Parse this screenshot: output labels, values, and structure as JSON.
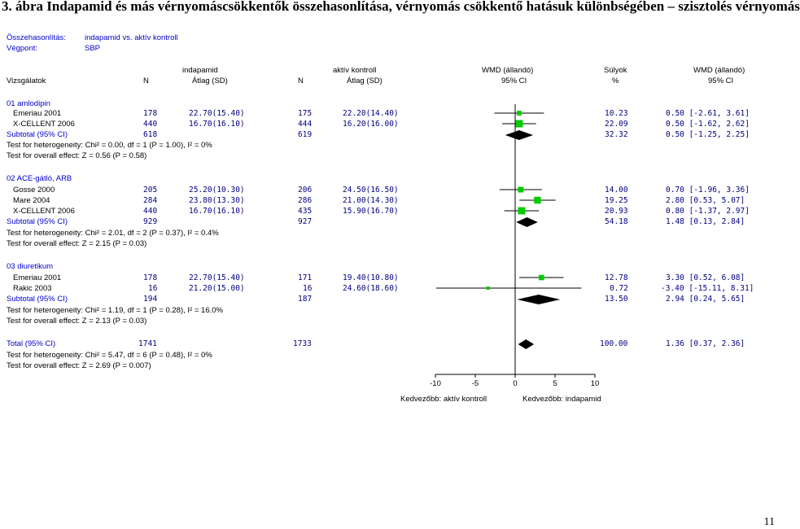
{
  "page_title": "3. ábra Indapamid és más vérnyomáscsökkentők összehasonlítása, vérnyomás csökkentő hatásuk különbségében – szisztolés vérnyomás",
  "page_number": "11",
  "meta": {
    "comparison_label": "Összehasonlítás:",
    "comparison_value": "indapamid vs. aktív kontroll",
    "endpoint_label": "Végpont:",
    "endpoint_value": "SBP"
  },
  "headers": {
    "group1": "indapamid",
    "group2": "aktív kontroll",
    "wmd1": "WMD (állandó)",
    "weight": "Súlyok",
    "wmd2": "WMD (állandó)",
    "studies": "Vizsgálatok",
    "n1": "N",
    "mean1": "Átlag (SD)",
    "n2": "N",
    "mean2": "Átlag (SD)",
    "ci1": "95% CI",
    "pct": "%",
    "ci2": "95% CI"
  },
  "chart_data": {
    "type": "forest",
    "xlim": [
      -10,
      10
    ],
    "ticks": [
      "-10",
      "-5",
      "0",
      "5",
      "10"
    ],
    "tick_values": [
      -10,
      -5,
      0,
      5,
      10
    ],
    "xlabel_left": "Kedvezőbb: aktív kontroll",
    "xlabel_right": "Kedvezőbb: indapamid",
    "colors": {
      "study_marker": "#00cc00",
      "diamond": "#000000",
      "text_numeric": "#000080"
    },
    "subgroups": [
      {
        "title": "01 amlodipin",
        "studies": [
          {
            "name": "Emeriau 2001",
            "n1": "178",
            "m1": "22.70(15.40)",
            "n2": "175",
            "m2": "22.20(14.40)",
            "weight": "10.23",
            "ci_text": "0.50 [-2.61, 3.61]",
            "est": 0.5,
            "lo": -2.61,
            "hi": 3.61
          },
          {
            "name": "X-CELLENT 2006",
            "n1": "440",
            "m1": "16.70(16.10)",
            "n2": "444",
            "m2": "16.20(16.00)",
            "weight": "22.09",
            "ci_text": "0.50 [-1.62, 2.62]",
            "est": 0.5,
            "lo": -1.62,
            "hi": 2.62
          }
        ],
        "subtotal": {
          "label": "Subtotal (95% CI)",
          "n1": "618",
          "n2": "619",
          "weight": "32.32",
          "ci_text": "0.50 [-1.25, 2.25]",
          "est": 0.5,
          "lo": -1.25,
          "hi": 2.25
        },
        "heterogeneity": "Test for heterogeneity: Chi² = 0.00, df = 1 (P = 1.00), I² = 0%",
        "overall": "Test for overall effect: Z = 0.56 (P = 0.58)"
      },
      {
        "title": "02 ACE-gátló, ARB",
        "studies": [
          {
            "name": "Gosse 2000",
            "n1": "205",
            "m1": "25.20(10.30)",
            "n2": "206",
            "m2": "24.50(16.50)",
            "weight": "14.00",
            "ci_text": "0.70 [-1.96, 3.36]",
            "est": 0.7,
            "lo": -1.96,
            "hi": 3.36
          },
          {
            "name": "Mare 2004",
            "n1": "284",
            "m1": "23.80(13.30)",
            "n2": "286",
            "m2": "21.00(14.30)",
            "weight": "19.25",
            "ci_text": "2.80 [0.53, 5.07]",
            "est": 2.8,
            "lo": 0.53,
            "hi": 5.07
          },
          {
            "name": "X-CELLENT 2006",
            "n1": "440",
            "m1": "16.70(16.10)",
            "n2": "435",
            "m2": "15.90(16.70)",
            "weight": "20.93",
            "ci_text": "0.80 [-1.37, 2.97]",
            "est": 0.8,
            "lo": -1.37,
            "hi": 2.97
          }
        ],
        "subtotal": {
          "label": "Subtotal (95% CI)",
          "n1": "929",
          "n2": "927",
          "weight": "54.18",
          "ci_text": "1.48 [0.13, 2.84]",
          "est": 1.48,
          "lo": 0.13,
          "hi": 2.84
        },
        "heterogeneity": "Test for heterogeneity: Chi² = 2.01, df = 2 (P = 0.37), I² = 0.4%",
        "overall": "Test for overall effect: Z = 2.15 (P = 0.03)"
      },
      {
        "title": "03 diuretikum",
        "studies": [
          {
            "name": "Emeriau 2001",
            "n1": "178",
            "m1": "22.70(15.40)",
            "n2": "171",
            "m2": "19.40(10.80)",
            "weight": "12.78",
            "ci_text": "3.30 [0.52, 6.08]",
            "est": 3.3,
            "lo": 0.52,
            "hi": 6.08
          },
          {
            "name": "Rakic 2003",
            "n1": "16",
            "m1": "21.20(15.00)",
            "n2": "16",
            "m2": "24.60(18.60)",
            "weight": "0.72",
            "ci_text": "-3.40 [-15.11, 8.31]",
            "est": -3.4,
            "lo": -15.11,
            "hi": 8.31
          }
        ],
        "subtotal": {
          "label": "Subtotal (95% CI)",
          "n1": "194",
          "n2": "187",
          "weight": "13.50",
          "ci_text": "2.94 [0.24, 5.65]",
          "est": 2.94,
          "lo": 0.24,
          "hi": 5.65
        },
        "heterogeneity": "Test for heterogeneity: Chi² = 1.19, df = 1 (P = 0.28), I² = 16.0%",
        "overall": "Test for overall effect: Z = 2.13 (P = 0.03)"
      }
    ],
    "total": {
      "label": "Total (95% CI)",
      "n1": "1741",
      "n2": "1733",
      "weight": "100.00",
      "ci_text": "1.36 [0.37, 2.36]",
      "est": 1.36,
      "lo": 0.37,
      "hi": 2.36,
      "heterogeneity": "Test for heterogeneity: Chi² = 5.47, df = 6 (P = 0.48), I² = 0%",
      "overall": "Test for overall effect: Z = 2.69 (P = 0.007)"
    }
  }
}
